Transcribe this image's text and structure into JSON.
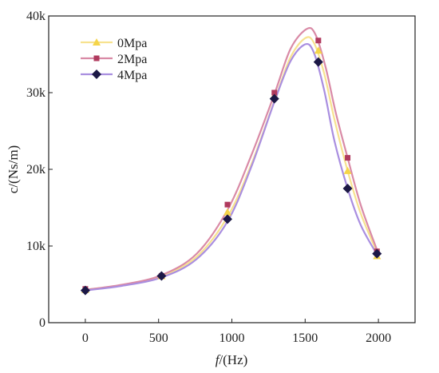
{
  "chart_data": {
    "type": "line",
    "xlabel_var": "f",
    "xlabel_unit": "/(Hz)",
    "ylabel": "c/(Ns/m)",
    "xlim": [
      -250,
      2250
    ],
    "ylim": [
      0,
      40000
    ],
    "x_ticks": [
      0,
      500,
      1000,
      1500,
      2000
    ],
    "x_tick_labels": [
      "0",
      "500",
      "1000",
      "1500",
      "2000"
    ],
    "y_ticks": [
      0,
      10000,
      20000,
      30000,
      40000
    ],
    "y_tick_labels": [
      "0",
      "10k",
      "20k",
      "30k",
      "40k"
    ],
    "grid": false,
    "legend_position": "top-left",
    "series": [
      {
        "name": "0Mpa",
        "color": "#f5d54a",
        "line_color": "#f7e28f",
        "marker": "triangle",
        "points": [
          [
            0,
            4300
          ],
          [
            520,
            6100
          ],
          [
            970,
            14400
          ],
          [
            1290,
            29600
          ],
          [
            1590,
            35500
          ],
          [
            1790,
            19800
          ],
          [
            1990,
            8700
          ]
        ],
        "curve": [
          [
            0,
            4300
          ],
          [
            250,
            4900
          ],
          [
            520,
            6100
          ],
          [
            760,
            8600
          ],
          [
            970,
            13800
          ],
          [
            1130,
            20500
          ],
          [
            1290,
            28900
          ],
          [
            1400,
            34600
          ],
          [
            1500,
            37100
          ],
          [
            1560,
            36500
          ],
          [
            1630,
            32500
          ],
          [
            1700,
            26500
          ],
          [
            1790,
            19800
          ],
          [
            1880,
            14200
          ],
          [
            1990,
            9200
          ]
        ]
      },
      {
        "name": "2Mpa",
        "color": "#b03a5e",
        "line_color": "#d98aa6",
        "marker": "square",
        "points": [
          [
            0,
            4400
          ],
          [
            520,
            6100
          ],
          [
            970,
            15400
          ],
          [
            1290,
            30000
          ],
          [
            1590,
            36800
          ],
          [
            1790,
            21500
          ],
          [
            1990,
            9300
          ]
        ],
        "curve": [
          [
            0,
            4300
          ],
          [
            250,
            4950
          ],
          [
            520,
            6200
          ],
          [
            760,
            9000
          ],
          [
            970,
            14700
          ],
          [
            1130,
            21700
          ],
          [
            1290,
            29800
          ],
          [
            1400,
            35700
          ],
          [
            1510,
            38300
          ],
          [
            1570,
            37600
          ],
          [
            1640,
            33300
          ],
          [
            1710,
            27300
          ],
          [
            1790,
            21500
          ],
          [
            1880,
            15300
          ],
          [
            1990,
            9500
          ]
        ]
      },
      {
        "name": "4Mpa",
        "color": "#1c1846",
        "line_color": "#a98ee0",
        "marker": "diamond",
        "points": [
          [
            0,
            4200
          ],
          [
            520,
            6100
          ],
          [
            970,
            13500
          ],
          [
            1290,
            29200
          ],
          [
            1590,
            34000
          ],
          [
            1790,
            17500
          ],
          [
            1990,
            9000
          ]
        ],
        "curve": [
          [
            0,
            4200
          ],
          [
            250,
            4800
          ],
          [
            520,
            5900
          ],
          [
            760,
            8300
          ],
          [
            970,
            13200
          ],
          [
            1130,
            20200
          ],
          [
            1290,
            28800
          ],
          [
            1400,
            34100
          ],
          [
            1500,
            36300
          ],
          [
            1560,
            35200
          ],
          [
            1630,
            30300
          ],
          [
            1700,
            23700
          ],
          [
            1790,
            17500
          ],
          [
            1880,
            12700
          ],
          [
            1990,
            8900
          ]
        ]
      }
    ]
  }
}
